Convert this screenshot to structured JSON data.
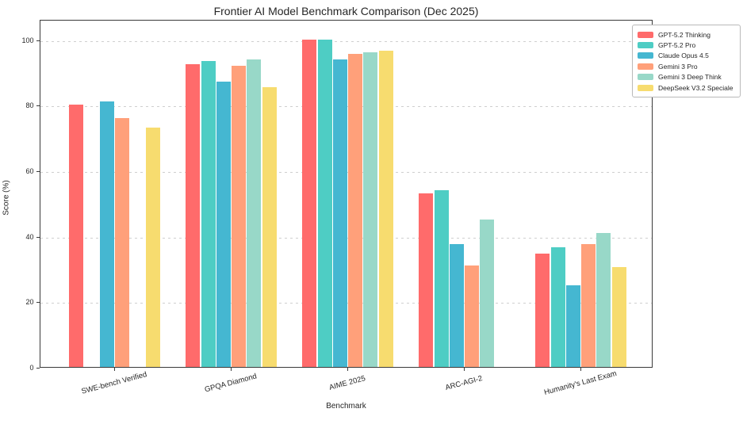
{
  "figure": {
    "background": "#ffffff",
    "spine_color": "#3a3a3a",
    "grid_color": "#cfcfcf",
    "text_color": "#262626"
  },
  "chart_data": {
    "type": "bar",
    "title": "Frontier AI Model Benchmark Comparison (Dec 2025)",
    "xlabel": "Benchmark",
    "ylabel": "Score (%)",
    "ylim": [
      0,
      106
    ],
    "yticks": [
      0,
      20,
      40,
      60,
      80,
      100
    ],
    "grid": "horizontal-dashed",
    "legend_position": "upper-right",
    "xtick_rotation": 15,
    "categories": [
      "SWE-bench Verified",
      "GPQA Diamond",
      "AIME 2025",
      "ARC-AGI-2",
      "Humanity's Last Exam"
    ],
    "series": [
      {
        "name": "GPT-5.2 Thinking",
        "color": "#FF6B6B",
        "values": [
          80,
          92.5,
          100,
          53,
          34.5
        ]
      },
      {
        "name": "GPT-5.2 Pro",
        "color": "#4ECDC4",
        "values": [
          null,
          93.5,
          100,
          54,
          36.5
        ]
      },
      {
        "name": "Claude Opus 4.5",
        "color": "#45B7D1",
        "values": [
          81,
          87,
          94,
          37.5,
          25
        ]
      },
      {
        "name": "Gemini 3 Pro",
        "color": "#FFA07A",
        "values": [
          76,
          92,
          95.5,
          31,
          37.5
        ]
      },
      {
        "name": "Gemini 3 Deep Think",
        "color": "#98D8C8",
        "values": [
          null,
          94,
          96,
          45,
          41
        ]
      },
      {
        "name": "DeepSeek V3.2 Speciale",
        "color": "#F7DC6F",
        "values": [
          73,
          85.5,
          96.5,
          null,
          30.5
        ]
      }
    ]
  }
}
